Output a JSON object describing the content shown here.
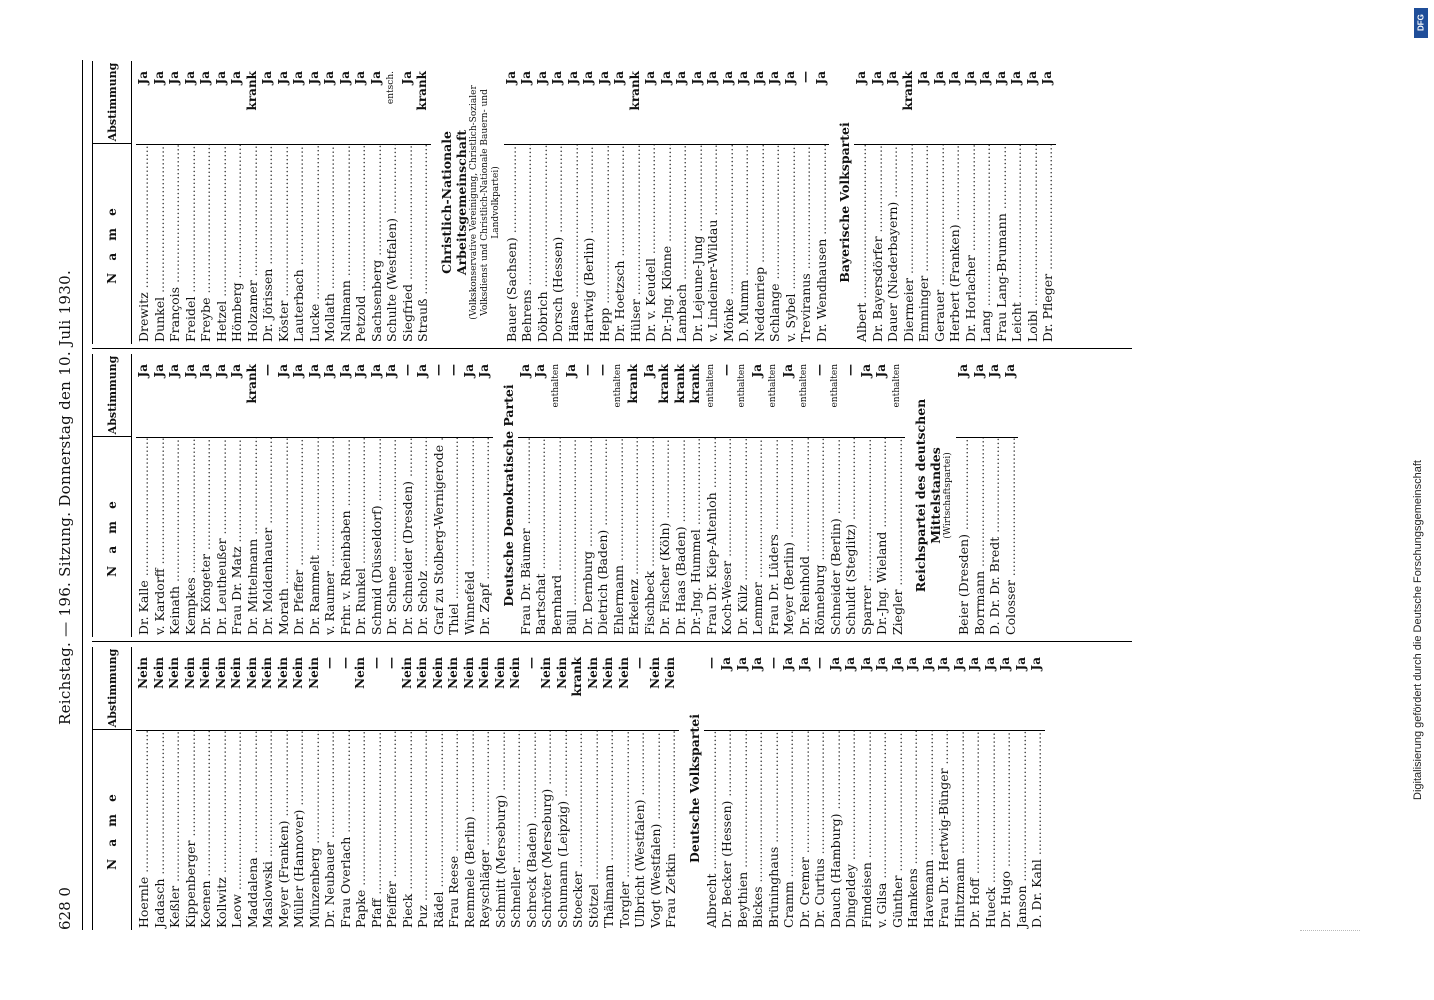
{
  "header": {
    "page_number": "628 0",
    "title": "Reichstag. — 196. Sitzung. Donnerstag den 10. Juli 1930."
  },
  "table_header": {
    "name_label": "N a m e",
    "vote_label": "Abstimmung"
  },
  "columns": [
    {
      "rows": [
        {
          "name": "Hoernle",
          "vote": "Nein"
        },
        {
          "name": "Jadasch",
          "vote": "Nein"
        },
        {
          "name": "Keßler",
          "vote": "Nein"
        },
        {
          "name": "Kippenberger",
          "vote": "Nein"
        },
        {
          "name": "Koenen",
          "vote": "Nein"
        },
        {
          "name": "Kollwitz",
          "vote": "Nein"
        },
        {
          "name": "Leow",
          "vote": "Nein"
        },
        {
          "name": "Maddalena",
          "vote": "Nein"
        },
        {
          "name": "Maslowski",
          "vote": "Nein"
        },
        {
          "name": "Meyer (Franken)",
          "vote": "Nein"
        },
        {
          "name": "Müller (Hannover)",
          "vote": "Nein"
        },
        {
          "name": "Münzenberg",
          "vote": "Nein"
        },
        {
          "name": "Dr. Neubauer",
          "vote": "—"
        },
        {
          "name": "Frau Overlach",
          "vote": "—"
        },
        {
          "name": "Papke",
          "vote": "Nein"
        },
        {
          "name": "Pfaff",
          "vote": "—"
        },
        {
          "name": "Pfeiffer",
          "vote": "—"
        },
        {
          "name": "Pieck",
          "vote": "Nein"
        },
        {
          "name": "Puz",
          "vote": "Nein"
        },
        {
          "name": "Rädel",
          "vote": "Nein"
        },
        {
          "name": "Frau Reese",
          "vote": "Nein"
        },
        {
          "name": "Remmele (Berlin)",
          "vote": "Nein"
        },
        {
          "name": "Reyschläger",
          "vote": "Nein"
        },
        {
          "name": "Schmitt (Merseburg)",
          "vote": "Nein"
        },
        {
          "name": "Schneller",
          "vote": "Nein"
        },
        {
          "name": "Schreck (Baden)",
          "vote": "—"
        },
        {
          "name": "Schröter (Merseburg)",
          "vote": "Nein"
        },
        {
          "name": "Schumann (Leipzig)",
          "vote": "Nein"
        },
        {
          "name": "Stoecker",
          "vote": "krank"
        },
        {
          "name": "Stötzel",
          "vote": "Nein"
        },
        {
          "name": "Thälmann",
          "vote": "Nein"
        },
        {
          "name": "Torgler",
          "vote": "Nein"
        },
        {
          "name": "Ulbricht (Westfalen)",
          "vote": "—"
        },
        {
          "name": "Vogt (Westfalen)",
          "vote": "Nein"
        },
        {
          "name": "Frau Zetkin",
          "vote": "Nein"
        }
      ],
      "party2": "Deutsche Volkspartei",
      "rows2": [
        {
          "name": "Albrecht",
          "vote": "—"
        },
        {
          "name": "Dr. Becker (Hessen)",
          "vote": "Ja"
        },
        {
          "name": "Beythien",
          "vote": "Ja"
        },
        {
          "name": "Bickes",
          "vote": "Ja"
        },
        {
          "name": "Brüninghaus",
          "vote": "—"
        },
        {
          "name": "Cramm",
          "vote": "Ja"
        },
        {
          "name": "Dr. Cremer",
          "vote": "Ja"
        },
        {
          "name": "Dr. Curtius",
          "vote": "—"
        },
        {
          "name": "Dauch (Hamburg)",
          "vote": "Ja"
        },
        {
          "name": "Dingeldey",
          "vote": "Ja"
        },
        {
          "name": "Fimdeisen",
          "vote": "Ja"
        },
        {
          "name": "v. Gilsa",
          "vote": "Ja"
        },
        {
          "name": "Günther",
          "vote": "Ja"
        },
        {
          "name": "Hamkens",
          "vote": "Ja"
        },
        {
          "name": "Havemann",
          "vote": "Ja"
        },
        {
          "name": "Frau Dr. Hertwig-Bünger",
          "vote": "Ja"
        },
        {
          "name": "Hintzmann",
          "vote": "Ja"
        },
        {
          "name": "Dr. Hoff",
          "vote": "Ja"
        },
        {
          "name": "Hueck",
          "vote": "Ja"
        },
        {
          "name": "Dr. Hugo",
          "vote": "Ja"
        },
        {
          "name": "Janson",
          "vote": "Ja"
        },
        {
          "name": "D. Dr. Kahl",
          "vote": "Ja"
        }
      ]
    },
    {
      "rows": [
        {
          "name": "Dr. Kalle",
          "vote": "Ja"
        },
        {
          "name": "v. Kardorff",
          "vote": "Ja"
        },
        {
          "name": "Keinath",
          "vote": "Ja"
        },
        {
          "name": "Kempkes",
          "vote": "Ja"
        },
        {
          "name": "Dr. Köngeter",
          "vote": "Ja"
        },
        {
          "name": "Dr. Leutheußer",
          "vote": "Ja"
        },
        {
          "name": "Frau Dr. Matz",
          "vote": "Ja"
        },
        {
          "name": "Dr. Mittelmann",
          "vote": "krank"
        },
        {
          "name": "Dr. Moldenhauer",
          "vote": "—"
        },
        {
          "name": "Morath",
          "vote": "Ja"
        },
        {
          "name": "Dr. Pfeffer",
          "vote": "Ja"
        },
        {
          "name": "Dr. Rammelt",
          "vote": "Ja"
        },
        {
          "name": "v. Raumer",
          "vote": "Ja"
        },
        {
          "name": "Frhr. v. Rheinbaben",
          "vote": "Ja"
        },
        {
          "name": "Dr. Runkel",
          "vote": "Ja"
        },
        {
          "name": "Schmid (Düsseldorf)",
          "vote": "Ja"
        },
        {
          "name": "Dr. Schnee",
          "vote": "Ja"
        },
        {
          "name": "Dr. Schneider (Dresden)",
          "vote": "—"
        },
        {
          "name": "Dr. Scholz",
          "vote": "Ja"
        },
        {
          "name": "Graf zu Stolberg-Wernigerode",
          "vote": "—"
        },
        {
          "name": "Thiel",
          "vote": "—"
        },
        {
          "name": "Winnefeld",
          "vote": "Ja"
        },
        {
          "name": "Dr. Zapf",
          "vote": "Ja"
        }
      ],
      "party2": "Deutsche Demokratische Partei",
      "rows2": [
        {
          "name": "Frau Dr. Bäumer",
          "vote": "Ja"
        },
        {
          "name": "Bartschat",
          "vote": "Ja"
        },
        {
          "name": "Bernhard",
          "vote": "enthalten"
        },
        {
          "name": "Büll",
          "vote": "Ja"
        },
        {
          "name": "Dr. Dernburg",
          "vote": "—"
        },
        {
          "name": "Dietrich (Baden)",
          "vote": "—"
        },
        {
          "name": "Ehlermann",
          "vote": "enthalten"
        },
        {
          "name": "Erkelenz",
          "vote": "krank"
        },
        {
          "name": "Fischbeck",
          "vote": "Ja"
        },
        {
          "name": "Dr. Fischer (Köln)",
          "vote": "krank"
        },
        {
          "name": "Dr. Haas (Baden)",
          "vote": "krank"
        },
        {
          "name": "Dr.-Jng. Hummel",
          "vote": "krank"
        },
        {
          "name": "Frau Dr. Kiep-Altenloh",
          "vote": "enthalten"
        },
        {
          "name": "Koch-Weser",
          "vote": "—"
        },
        {
          "name": "Dr. Külz",
          "vote": "enthalten"
        },
        {
          "name": "Lemmer",
          "vote": "Ja"
        },
        {
          "name": "Frau Dr. Lüders",
          "vote": "enthalten"
        },
        {
          "name": "Meyer (Berlin)",
          "vote": "Ja"
        },
        {
          "name": "Dr. Reinhold",
          "vote": "enthalten"
        },
        {
          "name": "Rönneburg",
          "vote": "—"
        },
        {
          "name": "Schneider (Berlin)",
          "vote": "enthalten"
        },
        {
          "name": "Schuldt (Steglitz)",
          "vote": "—"
        },
        {
          "name": "Sparrer",
          "vote": "Ja"
        },
        {
          "name": "Dr.-Jng. Wieland",
          "vote": "Ja"
        },
        {
          "name": "Ziegler",
          "vote": "enthalten"
        }
      ],
      "party3": "Reichspartei des deutschen Mittelstandes",
      "party3_sub": "(Wirtschaftspartei)",
      "rows3": [
        {
          "name": "Beier (Dresden)",
          "vote": "Ja"
        },
        {
          "name": "Borrmann",
          "vote": "Ja"
        },
        {
          "name": "D. Dr. Dr. Bredt",
          "vote": "Ja"
        },
        {
          "name": "Colosser",
          "vote": "Ja"
        }
      ]
    },
    {
      "rows": [
        {
          "name": "Drewitz",
          "vote": "Ja"
        },
        {
          "name": "Dunkel",
          "vote": "Ja"
        },
        {
          "name": "François",
          "vote": "Ja"
        },
        {
          "name": "Freidel",
          "vote": "Ja"
        },
        {
          "name": "Freybe",
          "vote": "Ja"
        },
        {
          "name": "Hetzel",
          "vote": "Ja"
        },
        {
          "name": "Hömberg",
          "vote": "Ja"
        },
        {
          "name": "Holzamer",
          "vote": "krank"
        },
        {
          "name": "Dr. Jörissen",
          "vote": "Ja"
        },
        {
          "name": "Köster",
          "vote": "Ja"
        },
        {
          "name": "Lauterbach",
          "vote": "Ja"
        },
        {
          "name": "Lucke",
          "vote": "Ja"
        },
        {
          "name": "Mollath",
          "vote": "Ja"
        },
        {
          "name": "Nallmann",
          "vote": "Ja"
        },
        {
          "name": "Petzold",
          "vote": "Ja"
        },
        {
          "name": "Sachsenberg",
          "vote": "Ja"
        },
        {
          "name": "Schulte (Westfalen)",
          "vote": "entsch."
        },
        {
          "name": "Siegfried",
          "vote": "Ja"
        },
        {
          "name": "Strauß",
          "vote": "krank"
        }
      ],
      "party2": "Christlich-Nationale Arbeitsgemeinschaft",
      "party2_sub": "(Volkskonservative Vereinigung, Christlich-Sozialer Volksdienst und Christlich-Nationale Bauern- und Landvolkpartei)",
      "rows2": [
        {
          "name": "Bauer (Sachsen)",
          "vote": "Ja"
        },
        {
          "name": "Behrens",
          "vote": "Ja"
        },
        {
          "name": "Döbrich",
          "vote": "Ja"
        },
        {
          "name": "Dorsch (Hessen)",
          "vote": "Ja"
        },
        {
          "name": "Hänse",
          "vote": "Ja"
        },
        {
          "name": "Hartwig (Berlin)",
          "vote": "Ja"
        },
        {
          "name": "Hepp",
          "vote": "Ja"
        },
        {
          "name": "Dr. Hoetzsch",
          "vote": "Ja"
        },
        {
          "name": "Hülser",
          "vote": "krank"
        },
        {
          "name": "Dr. v. Keudell",
          "vote": "Ja"
        },
        {
          "name": "Dr.-Jng. Klönne",
          "vote": "Ja"
        },
        {
          "name": "Lambach",
          "vote": "Ja"
        },
        {
          "name": "Dr. Lejeune-Jung",
          "vote": "Ja"
        },
        {
          "name": "v. Lindeiner-Wildau",
          "vote": "Ja"
        },
        {
          "name": "Mönke",
          "vote": "Ja"
        },
        {
          "name": "D. Mumm",
          "vote": "Ja"
        },
        {
          "name": "Neddenriep",
          "vote": "Ja"
        },
        {
          "name": "Schlange",
          "vote": "Ja"
        },
        {
          "name": "v. Sybel",
          "vote": "Ja"
        },
        {
          "name": "Treviranus",
          "vote": "—"
        },
        {
          "name": "Dr. Wendhausen",
          "vote": "Ja"
        }
      ],
      "party3": "Bayerische Volkspartei",
      "rows3": [
        {
          "name": "Albert",
          "vote": "Ja"
        },
        {
          "name": "Dr. Bayersdörfer",
          "vote": "Ja"
        },
        {
          "name": "Dauer (Niederbayern)",
          "vote": "Ja"
        },
        {
          "name": "Diermeier",
          "vote": "krank"
        },
        {
          "name": "Emminger",
          "vote": "Ja"
        },
        {
          "name": "Gerauer",
          "vote": "Ja"
        },
        {
          "name": "Herbert (Franken)",
          "vote": "Ja"
        },
        {
          "name": "Dr. Horlacher",
          "vote": "Ja"
        },
        {
          "name": "Lang",
          "vote": "Ja"
        },
        {
          "name": "Frau Lang-Brumann",
          "vote": "Ja"
        },
        {
          "name": "Leicht",
          "vote": "Ja"
        },
        {
          "name": "Loibl",
          "vote": "Ja"
        },
        {
          "name": "Dr. Pfleger",
          "vote": "Ja"
        }
      ]
    }
  ],
  "side_note": "Digitalisierung gefördert durch die Deutsche Forschungsgemeinschaft",
  "side_logo": "DFG"
}
